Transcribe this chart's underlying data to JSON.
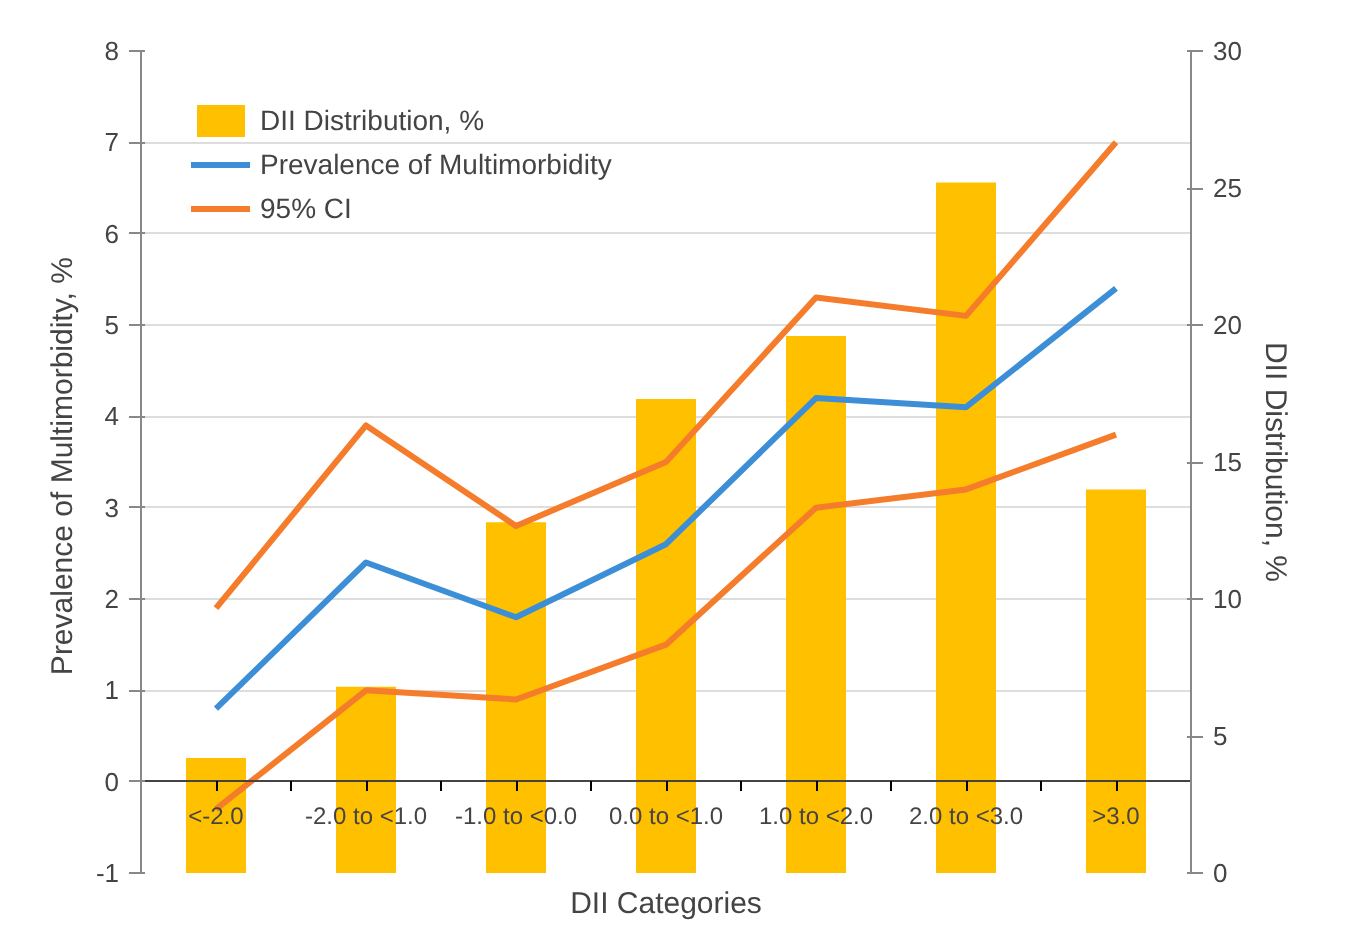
{
  "chart_data": {
    "type": "bar",
    "xlabel": "DII Categories",
    "ylabel": "Prevalence of Multimorbidity,  %",
    "y2label": "DII Distribution, %",
    "categories": [
      "<-2.0",
      "-2.0 to <1.0",
      "-1.0 to <0.0",
      "0.0 to <1.0",
      "1.0 to <2.0",
      "2.0 to <3.0",
      ">3.0"
    ],
    "series": [
      {
        "name": "DII Distribution, %",
        "axis": "y2",
        "color": "#ffc000",
        "values": [
          4.2,
          6.8,
          12.8,
          17.3,
          19.6,
          25.2,
          14.0
        ]
      },
      {
        "name": "Prevalence of Multimorbidity",
        "type": "line",
        "color": "#3c8fd6",
        "values": [
          0.8,
          2.4,
          1.8,
          2.6,
          4.2,
          4.1,
          5.4
        ]
      },
      {
        "name": "95% CI",
        "type": "line",
        "color": "#f47c2a",
        "values": [
          1.9,
          3.9,
          2.8,
          3.5,
          5.3,
          5.1,
          7.0
        ]
      },
      {
        "type": "line",
        "color": "#f47c2a",
        "values": [
          -0.3,
          1.0,
          0.9,
          1.5,
          3.0,
          3.2,
          3.8
        ]
      }
    ],
    "ylim": [
      -1,
      8
    ],
    "yticks": [
      -1,
      0,
      1,
      2,
      3,
      4,
      5,
      6,
      7,
      8
    ],
    "y2lim": [
      0,
      30
    ],
    "y2ticks": [
      0,
      5,
      10,
      15,
      20,
      25,
      30
    ],
    "grid": "y",
    "legend": "top left"
  }
}
